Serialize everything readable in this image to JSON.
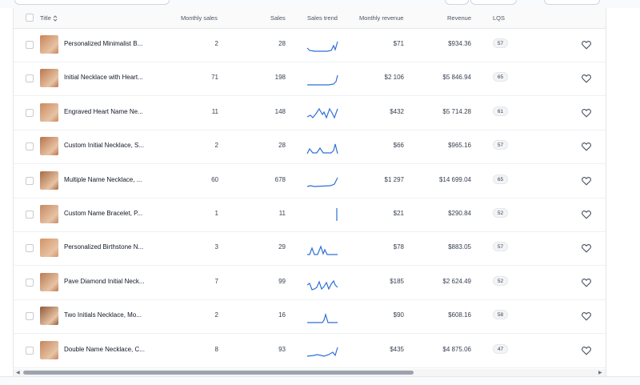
{
  "header": {
    "title": "Title",
    "monthly_sales": "Monthly sales",
    "sales": "Sales",
    "sales_trend": "Sales trend",
    "monthly_revenue": "Monthly revenue",
    "revenue": "Revenue",
    "lqs": "LQS"
  },
  "rows": [
    {
      "title": "Personalized Minimalist B...",
      "monthly_sales": "2",
      "sales": "28",
      "monthly_revenue": "$71",
      "revenue": "$934.36",
      "lqs": "57",
      "thumb_color": "#c8845a"
    },
    {
      "title": "Initial Necklace with Heart...",
      "monthly_sales": "71",
      "sales": "198",
      "monthly_revenue": "$2 106",
      "revenue": "$5 846.94",
      "lqs": "65",
      "thumb_color": "#b9774f"
    },
    {
      "title": "Engraved Heart Name Ne...",
      "monthly_sales": "11",
      "sales": "148",
      "monthly_revenue": "$432",
      "revenue": "$5 714.28",
      "lqs": "61",
      "thumb_color": "#c98a5e"
    },
    {
      "title": "Custom Initial Necklace, S...",
      "monthly_sales": "2",
      "sales": "28",
      "monthly_revenue": "$66",
      "revenue": "$965.16",
      "lqs": "57",
      "thumb_color": "#b8734c"
    },
    {
      "title": "Multiple Name Necklace, ...",
      "monthly_sales": "60",
      "sales": "678",
      "monthly_revenue": "$1 297",
      "revenue": "$14 699.04",
      "lqs": "65",
      "thumb_color": "#a86a45"
    },
    {
      "title": "Custom Name Bracelet, P...",
      "monthly_sales": "1",
      "sales": "11",
      "monthly_revenue": "$21",
      "revenue": "$290.84",
      "lqs": "52",
      "thumb_color": "#c48a63"
    },
    {
      "title": "Personalized Birthstone N...",
      "monthly_sales": "3",
      "sales": "29",
      "monthly_revenue": "$78",
      "revenue": "$883.05",
      "lqs": "57",
      "thumb_color": "#d39466"
    },
    {
      "title": "Pave Diamond Initial Neck...",
      "monthly_sales": "7",
      "sales": "99",
      "monthly_revenue": "$185",
      "revenue": "$2 624.49",
      "lqs": "52",
      "thumb_color": "#b97a52"
    },
    {
      "title": "Two Initials Necklace, Mo...",
      "monthly_sales": "2",
      "sales": "16",
      "monthly_revenue": "$90",
      "revenue": "$608.16",
      "lqs": "58",
      "thumb_color": "#8f5a3c"
    },
    {
      "title": "Double Name Necklace, C...",
      "monthly_sales": "8",
      "sales": "93",
      "monthly_revenue": "$435",
      "revenue": "$4 875.06",
      "lqs": "47",
      "thumb_color": "#c4875e"
    }
  ],
  "trend_color": "#2f6fd6",
  "icons": {
    "favorite": "heart-icon",
    "sort": "sort-icon",
    "scroll_left": "chevron-left-icon",
    "scroll_right": "chevron-right-icon"
  }
}
